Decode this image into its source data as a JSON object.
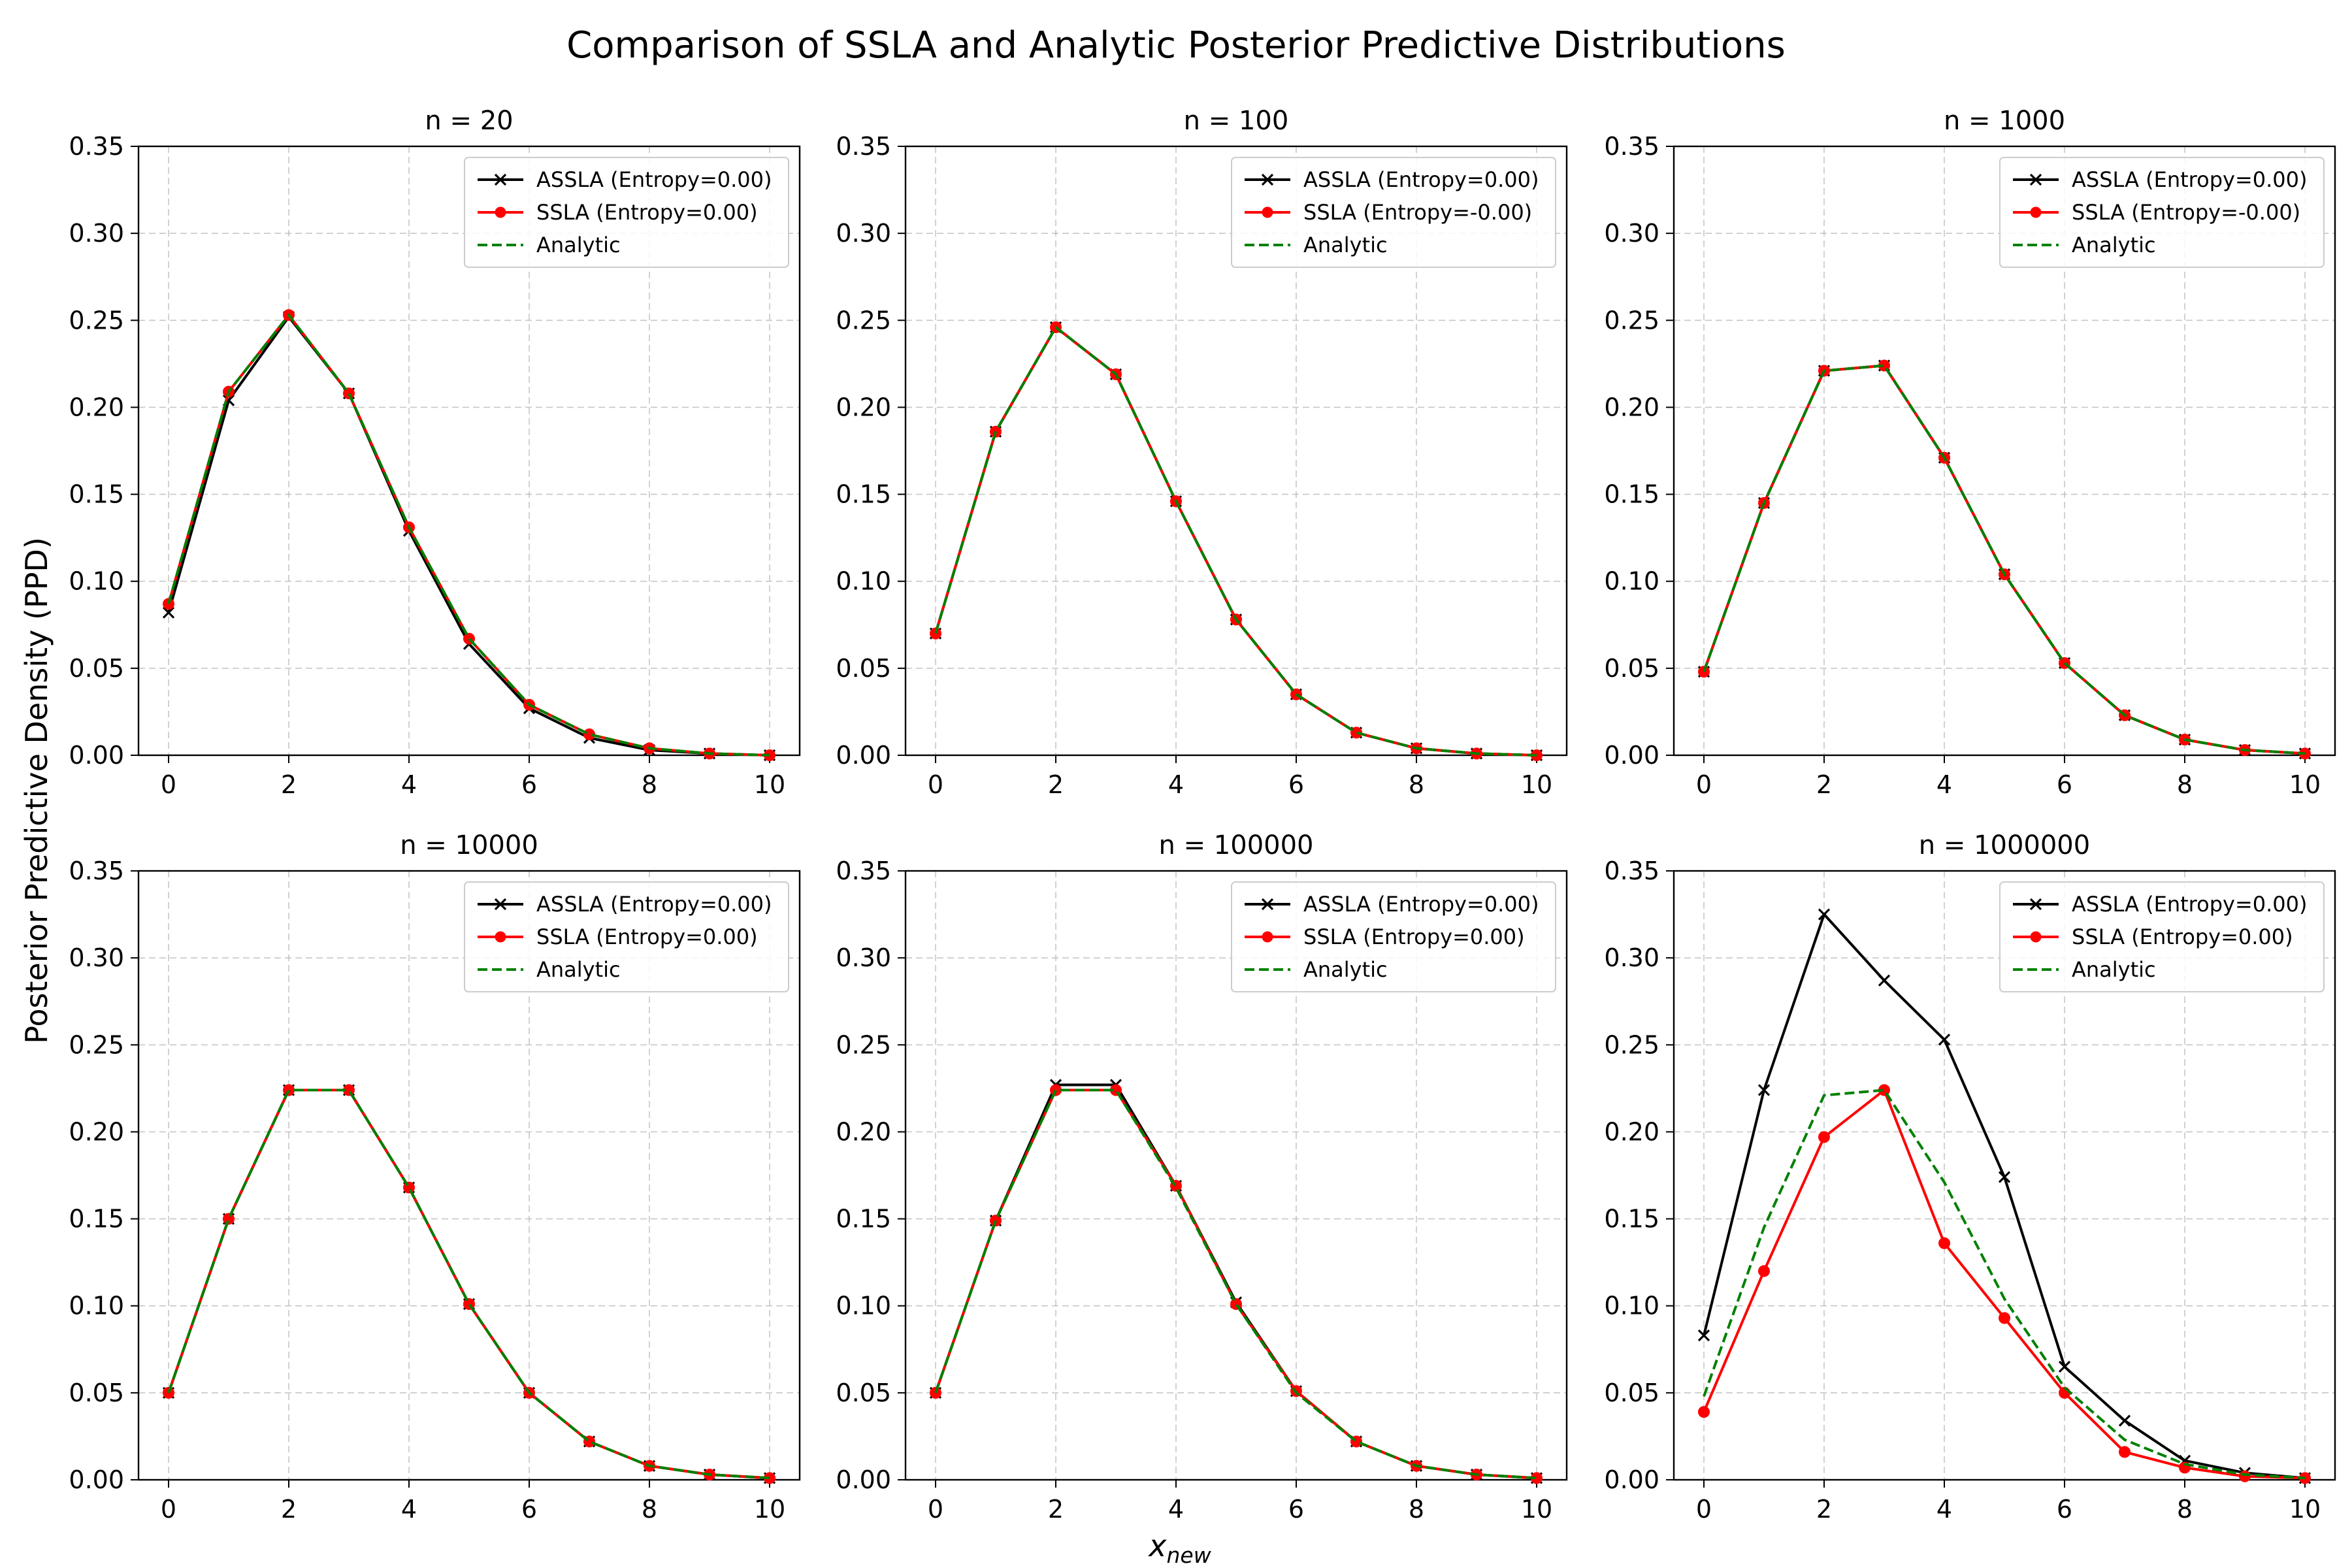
{
  "title": "Comparison of SSLA and Analytic Posterior Predictive Distributions",
  "ylabel": "Posterior Predictive Density (PPD)",
  "xlabel": "x",
  "xlabel_sub": "new",
  "colors": {
    "assla": "#000000",
    "ssla": "#ff0000",
    "analytic": "#008000",
    "grid": "#b0b0b0"
  },
  "chart_data": [
    {
      "type": "line",
      "title": "n = 20",
      "x": [
        0,
        1,
        2,
        3,
        4,
        5,
        6,
        7,
        8,
        9,
        10
      ],
      "xticks": [
        0,
        2,
        4,
        6,
        8,
        10
      ],
      "yticks": [
        0.0,
        0.05,
        0.1,
        0.15,
        0.2,
        0.25,
        0.3,
        0.35
      ],
      "xlim": [
        -0.5,
        10.5
      ],
      "ylim": [
        0,
        0.35
      ],
      "grid": true,
      "legend_loc": "upper right",
      "series": [
        {
          "name": "ASSLA (Entropy=0.00)",
          "marker": "x",
          "style": "solid",
          "values": [
            0.082,
            0.204,
            0.252,
            0.208,
            0.129,
            0.064,
            0.027,
            0.01,
            0.003,
            0.001,
            0.0
          ]
        },
        {
          "name": "SSLA (Entropy=0.00)",
          "marker": "o",
          "style": "solid",
          "values": [
            0.087,
            0.209,
            0.253,
            0.208,
            0.131,
            0.067,
            0.029,
            0.012,
            0.004,
            0.001,
            0.0
          ]
        },
        {
          "name": "Analytic",
          "marker": "none",
          "style": "dashed",
          "values": [
            0.087,
            0.209,
            0.253,
            0.208,
            0.131,
            0.067,
            0.029,
            0.012,
            0.004,
            0.001,
            0.0
          ]
        }
      ]
    },
    {
      "type": "line",
      "title": "n = 100",
      "x": [
        0,
        1,
        2,
        3,
        4,
        5,
        6,
        7,
        8,
        9,
        10
      ],
      "xticks": [
        0,
        2,
        4,
        6,
        8,
        10
      ],
      "yticks": [
        0.0,
        0.05,
        0.1,
        0.15,
        0.2,
        0.25,
        0.3,
        0.35
      ],
      "xlim": [
        -0.5,
        10.5
      ],
      "ylim": [
        0,
        0.35
      ],
      "grid": true,
      "legend_loc": "upper right",
      "series": [
        {
          "name": "ASSLA (Entropy=0.00)",
          "marker": "x",
          "style": "solid",
          "values": [
            0.07,
            0.186,
            0.246,
            0.219,
            0.146,
            0.078,
            0.035,
            0.013,
            0.004,
            0.001,
            0.0
          ]
        },
        {
          "name": "SSLA (Entropy=-0.00)",
          "marker": "o",
          "style": "solid",
          "values": [
            0.07,
            0.186,
            0.246,
            0.219,
            0.146,
            0.078,
            0.035,
            0.013,
            0.004,
            0.001,
            0.0
          ]
        },
        {
          "name": "Analytic",
          "marker": "none",
          "style": "dashed",
          "values": [
            0.07,
            0.186,
            0.246,
            0.219,
            0.146,
            0.078,
            0.035,
            0.013,
            0.004,
            0.001,
            0.0
          ]
        }
      ]
    },
    {
      "type": "line",
      "title": "n = 1000",
      "x": [
        0,
        1,
        2,
        3,
        4,
        5,
        6,
        7,
        8,
        9,
        10
      ],
      "xticks": [
        0,
        2,
        4,
        6,
        8,
        10
      ],
      "yticks": [
        0.0,
        0.05,
        0.1,
        0.15,
        0.2,
        0.25,
        0.3,
        0.35
      ],
      "xlim": [
        -0.5,
        10.5
      ],
      "ylim": [
        0,
        0.35
      ],
      "grid": true,
      "legend_loc": "upper right",
      "series": [
        {
          "name": "ASSLA (Entropy=0.00)",
          "marker": "x",
          "style": "solid",
          "values": [
            0.048,
            0.145,
            0.221,
            0.224,
            0.171,
            0.104,
            0.053,
            0.023,
            0.009,
            0.003,
            0.001
          ]
        },
        {
          "name": "SSLA (Entropy=-0.00)",
          "marker": "o",
          "style": "solid",
          "values": [
            0.048,
            0.145,
            0.221,
            0.224,
            0.171,
            0.104,
            0.053,
            0.023,
            0.009,
            0.003,
            0.001
          ]
        },
        {
          "name": "Analytic",
          "marker": "none",
          "style": "dashed",
          "values": [
            0.048,
            0.145,
            0.221,
            0.224,
            0.171,
            0.104,
            0.053,
            0.023,
            0.009,
            0.003,
            0.001
          ]
        }
      ]
    },
    {
      "type": "line",
      "title": "n = 10000",
      "x": [
        0,
        1,
        2,
        3,
        4,
        5,
        6,
        7,
        8,
        9,
        10
      ],
      "xticks": [
        0,
        2,
        4,
        6,
        8,
        10
      ],
      "yticks": [
        0.0,
        0.05,
        0.1,
        0.15,
        0.2,
        0.25,
        0.3,
        0.35
      ],
      "xlim": [
        -0.5,
        10.5
      ],
      "ylim": [
        0,
        0.35
      ],
      "grid": true,
      "legend_loc": "upper right",
      "series": [
        {
          "name": "ASSLA (Entropy=0.00)",
          "marker": "x",
          "style": "solid",
          "values": [
            0.05,
            0.15,
            0.224,
            0.224,
            0.168,
            0.101,
            0.05,
            0.022,
            0.008,
            0.003,
            0.001
          ]
        },
        {
          "name": "SSLA (Entropy=0.00)",
          "marker": "o",
          "style": "solid",
          "values": [
            0.05,
            0.15,
            0.224,
            0.224,
            0.168,
            0.101,
            0.05,
            0.022,
            0.008,
            0.003,
            0.001
          ]
        },
        {
          "name": "Analytic",
          "marker": "none",
          "style": "dashed",
          "values": [
            0.05,
            0.15,
            0.224,
            0.224,
            0.168,
            0.101,
            0.05,
            0.022,
            0.008,
            0.003,
            0.001
          ]
        }
      ]
    },
    {
      "type": "line",
      "title": "n = 100000",
      "x": [
        0,
        1,
        2,
        3,
        4,
        5,
        6,
        7,
        8,
        9,
        10
      ],
      "xticks": [
        0,
        2,
        4,
        6,
        8,
        10
      ],
      "yticks": [
        0.0,
        0.05,
        0.1,
        0.15,
        0.2,
        0.25,
        0.3,
        0.35
      ],
      "xlim": [
        -0.5,
        10.5
      ],
      "ylim": [
        0,
        0.35
      ],
      "grid": true,
      "legend_loc": "upper right",
      "series": [
        {
          "name": "ASSLA (Entropy=0.00)",
          "marker": "x",
          "style": "solid",
          "values": [
            0.05,
            0.149,
            0.227,
            0.227,
            0.169,
            0.102,
            0.051,
            0.022,
            0.008,
            0.003,
            0.001
          ]
        },
        {
          "name": "SSLA (Entropy=0.00)",
          "marker": "o",
          "style": "solid",
          "values": [
            0.05,
            0.149,
            0.224,
            0.224,
            0.169,
            0.101,
            0.051,
            0.022,
            0.008,
            0.003,
            0.001
          ]
        },
        {
          "name": "Analytic",
          "marker": "none",
          "style": "dashed",
          "values": [
            0.05,
            0.149,
            0.224,
            0.224,
            0.168,
            0.101,
            0.05,
            0.022,
            0.008,
            0.003,
            0.001
          ]
        }
      ]
    },
    {
      "type": "line",
      "title": "n = 1000000",
      "x": [
        0,
        1,
        2,
        3,
        4,
        5,
        6,
        7,
        8,
        9,
        10
      ],
      "xticks": [
        0,
        2,
        4,
        6,
        8,
        10
      ],
      "yticks": [
        0.0,
        0.05,
        0.1,
        0.15,
        0.2,
        0.25,
        0.3,
        0.35
      ],
      "xlim": [
        -0.5,
        10.5
      ],
      "ylim": [
        0,
        0.35
      ],
      "grid": true,
      "legend_loc": "upper right",
      "series": [
        {
          "name": "ASSLA (Entropy=0.00)",
          "marker": "x",
          "style": "solid",
          "values": [
            0.083,
            0.224,
            0.325,
            0.287,
            0.253,
            0.174,
            0.065,
            0.034,
            0.011,
            0.004,
            0.001
          ]
        },
        {
          "name": "SSLA (Entropy=0.00)",
          "marker": "o",
          "style": "solid",
          "values": [
            0.039,
            0.12,
            0.197,
            0.224,
            0.136,
            0.093,
            0.05,
            0.016,
            0.007,
            0.002,
            0.001
          ]
        },
        {
          "name": "Analytic",
          "marker": "none",
          "style": "dashed",
          "values": [
            0.048,
            0.145,
            0.221,
            0.224,
            0.171,
            0.104,
            0.053,
            0.023,
            0.009,
            0.003,
            0.001
          ]
        }
      ]
    }
  ]
}
